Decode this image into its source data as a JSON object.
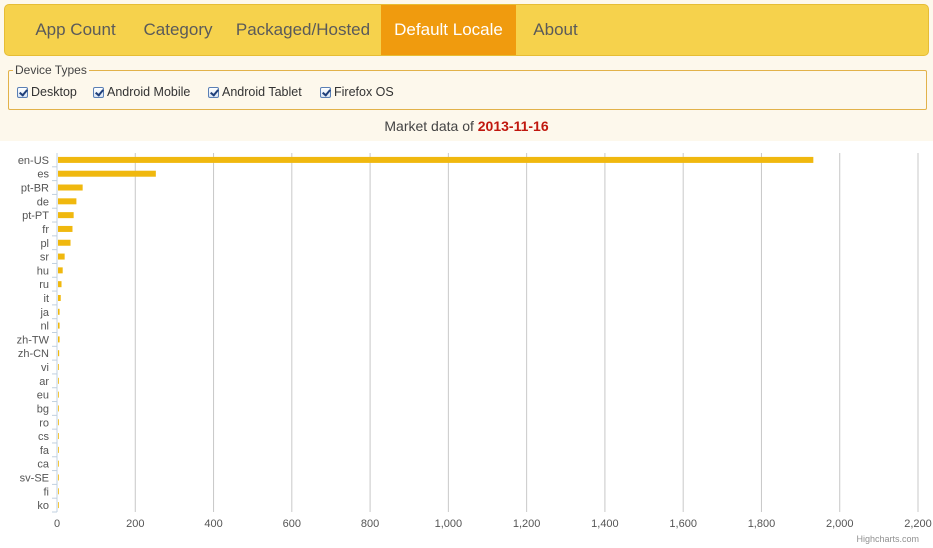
{
  "nav": {
    "tabs": [
      {
        "label": "App Count",
        "active": false
      },
      {
        "label": "Category",
        "active": false
      },
      {
        "label": "Packaged/Hosted",
        "active": false
      },
      {
        "label": "Default Locale",
        "active": true
      },
      {
        "label": "About",
        "active": false
      }
    ]
  },
  "device_types": {
    "legend": "Device Types",
    "options": [
      {
        "label": "Desktop",
        "checked": true
      },
      {
        "label": "Android Mobile",
        "checked": true
      },
      {
        "label": "Android Tablet",
        "checked": true
      },
      {
        "label": "Firefox OS",
        "checked": true
      }
    ]
  },
  "market": {
    "prefix": "Market data of",
    "date": "2013-11-16"
  },
  "colors": {
    "navbar": "#f6d24c",
    "active_tab": "#f09b0e",
    "bar": "#f0b80e",
    "date": "#c0170e"
  },
  "credit": "Highcharts.com",
  "chart_data": {
    "type": "bar",
    "orientation": "horizontal",
    "categories": [
      "en-US",
      "es",
      "pt-BR",
      "de",
      "pt-PT",
      "fr",
      "pl",
      "sr",
      "hu",
      "ru",
      "it",
      "ja",
      "nl",
      "zh-TW",
      "zh-CN",
      "vi",
      "ar",
      "eu",
      "bg",
      "ro",
      "cs",
      "fa",
      "ca",
      "sv-SE",
      "fi",
      "ko"
    ],
    "values": [
      1930,
      250,
      63,
      47,
      40,
      37,
      32,
      17,
      12,
      9,
      7,
      4,
      4,
      4,
      3,
      2,
      2,
      2,
      2,
      2,
      2,
      1,
      1,
      1,
      1,
      1
    ],
    "xticks": [
      0,
      200,
      400,
      600,
      800,
      1000,
      1200,
      1400,
      1600,
      1800,
      2000,
      2200
    ],
    "xtick_labels": [
      "0",
      "200",
      "400",
      "600",
      "800",
      "1,000",
      "1,200",
      "1,400",
      "1,600",
      "1,800",
      "2,000",
      "2,200"
    ],
    "xlim": [
      0,
      2200
    ],
    "grid": true,
    "legend": false
  }
}
